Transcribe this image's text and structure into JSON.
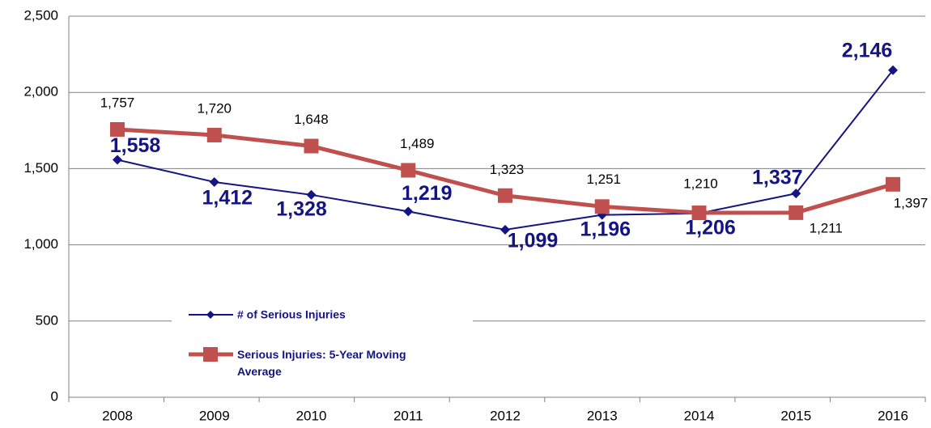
{
  "chart_data": {
    "type": "line",
    "categories": [
      "2008",
      "2009",
      "2010",
      "2011",
      "2012",
      "2013",
      "2014",
      "2015",
      "2016"
    ],
    "series": [
      {
        "name": "# of Serious Injuries",
        "color": "#141482",
        "values": [
          1558,
          1412,
          1328,
          1219,
          1099,
          1196,
          1206,
          1337,
          2146
        ],
        "value_labels": [
          "1,558",
          "1,412",
          "1,328",
          "1,219",
          "1,099",
          "1,196",
          "1,206",
          "1,337",
          "2,146"
        ]
      },
      {
        "name": "Serious Injuries: 5-Year Moving Average",
        "color": "#c0504d",
        "values": [
          1757,
          1720,
          1648,
          1489,
          1323,
          1251,
          1210,
          1211,
          1397
        ],
        "value_labels": [
          "1,757",
          "1,720",
          "1,648",
          "1,489",
          "1,323",
          "1,251",
          "1,210",
          "1,211",
          "1,397"
        ]
      }
    ],
    "ylim": [
      0,
      2500
    ],
    "yticks": [
      {
        "value": 0,
        "label": "0"
      },
      {
        "value": 500,
        "label": "500"
      },
      {
        "value": 1000,
        "label": "1,000"
      },
      {
        "value": 1500,
        "label": "1,500"
      },
      {
        "value": 2000,
        "label": "2,000"
      },
      {
        "value": 2500,
        "label": "2,500"
      }
    ],
    "grid": true
  }
}
